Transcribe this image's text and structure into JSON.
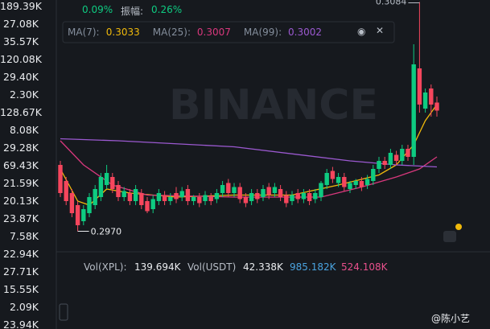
{
  "left_labels": [
    "189.39K",
    "27.08K",
    "35.57K",
    "120.08K",
    "29.40K",
    "2.30K",
    "128.67K",
    "8.08K",
    "29.28K",
    "69.43K",
    "21.59K",
    "20.13K",
    "23.87K",
    "7.58K",
    "22.94K",
    "27.71K",
    "15.55K",
    "2.09K",
    "23.94K"
  ],
  "header": {
    "change": "0.09%",
    "amplitude_label": "振幅:",
    "amplitude": "0.26%"
  },
  "ma_legend": [
    {
      "label": "MA(7):",
      "value": "0.3033",
      "color": "#f0b90b",
      "points": [
        [
          0,
          0.3001
        ],
        [
          3,
          0.2985
        ],
        [
          5,
          0.2983
        ],
        [
          8,
          0.2991
        ],
        [
          12,
          0.2989
        ],
        [
          20,
          0.2987
        ],
        [
          30,
          0.2988
        ],
        [
          40,
          0.2988
        ],
        [
          48,
          0.2993
        ],
        [
          55,
          0.2998
        ],
        [
          58,
          0.3003
        ],
        [
          61,
          0.3013
        ],
        [
          63,
          0.3025
        ],
        [
          65,
          0.3033
        ]
      ]
    },
    {
      "label": "MA(25):",
      "value": "0.3007",
      "color": "#d9387d",
      "points": [
        [
          0,
          0.3015
        ],
        [
          4,
          0.3003
        ],
        [
          9,
          0.2993
        ],
        [
          15,
          0.2988
        ],
        [
          30,
          0.2987
        ],
        [
          45,
          0.2987
        ],
        [
          52,
          0.2992
        ],
        [
          58,
          0.2997
        ],
        [
          62,
          0.3001
        ],
        [
          65,
          0.3007
        ]
      ]
    },
    {
      "label": "MA(99):",
      "value": "0.3002",
      "color": "#9b59d0",
      "points": [
        [
          0,
          0.3016
        ],
        [
          10,
          0.3015
        ],
        [
          30,
          0.3012
        ],
        [
          50,
          0.3005
        ],
        [
          58,
          0.3003
        ],
        [
          65,
          0.3002
        ]
      ]
    }
  ],
  "chart_data": {
    "type": "candlestick",
    "ylim": [
      0.2961,
      0.3085
    ],
    "up_color": "#0ecb81",
    "down_color": "#f6465d",
    "watermark": "BINANCE",
    "high_label": "0.3084",
    "low_label": "0.2970",
    "candles": [
      [
        0.3003,
        0.3005,
        0.2987,
        0.2989
      ],
      [
        0.2995,
        0.2997,
        0.2983,
        0.2985
      ],
      [
        0.2989,
        0.2991,
        0.2977,
        0.2979
      ],
      [
        0.2983,
        0.2985,
        0.297,
        0.2973
      ],
      [
        0.2975,
        0.2983,
        0.2973,
        0.2981
      ],
      [
        0.2979,
        0.2989,
        0.2977,
        0.2987
      ],
      [
        0.2983,
        0.2993,
        0.2981,
        0.2991
      ],
      [
        0.2987,
        0.2999,
        0.2985,
        0.2997
      ],
      [
        0.2993,
        0.3003,
        0.2991,
        0.2999
      ],
      [
        0.2997,
        0.2999,
        0.2989,
        0.2991
      ],
      [
        0.2993,
        0.2995,
        0.2985,
        0.2987
      ],
      [
        0.2987,
        0.2992,
        0.2985,
        0.299
      ],
      [
        0.2989,
        0.2991,
        0.2983,
        0.2985
      ],
      [
        0.2985,
        0.2993,
        0.2983,
        0.2991
      ],
      [
        0.2989,
        0.2991,
        0.2981,
        0.2983
      ],
      [
        0.2985,
        0.2987,
        0.2979,
        0.298
      ],
      [
        0.2981,
        0.2988,
        0.2979,
        0.2986
      ],
      [
        0.2985,
        0.2991,
        0.2983,
        0.2989
      ],
      [
        0.2988,
        0.299,
        0.2983,
        0.2985
      ],
      [
        0.2985,
        0.2989,
        0.2983,
        0.2987
      ],
      [
        0.2989,
        0.2992,
        0.2984,
        0.2986
      ],
      [
        0.2987,
        0.2992,
        0.2985,
        0.299
      ],
      [
        0.2991,
        0.2993,
        0.2983,
        0.2985
      ],
      [
        0.2985,
        0.2988,
        0.2983,
        0.2987
      ],
      [
        0.2987,
        0.2989,
        0.2982,
        0.2984
      ],
      [
        0.2985,
        0.299,
        0.2983,
        0.2988
      ],
      [
        0.2987,
        0.2989,
        0.2983,
        0.2985
      ],
      [
        0.2986,
        0.2991,
        0.2984,
        0.2989
      ],
      [
        0.2989,
        0.2995,
        0.2987,
        0.2993
      ],
      [
        0.2994,
        0.2996,
        0.2987,
        0.2989
      ],
      [
        0.2989,
        0.2994,
        0.2987,
        0.2992
      ],
      [
        0.2992,
        0.2994,
        0.2984,
        0.2986
      ],
      [
        0.2987,
        0.2989,
        0.2982,
        0.2984
      ],
      [
        0.2985,
        0.2991,
        0.2983,
        0.2989
      ],
      [
        0.2989,
        0.2991,
        0.2984,
        0.2986
      ],
      [
        0.2987,
        0.2993,
        0.2985,
        0.2991
      ],
      [
        0.2992,
        0.2994,
        0.2986,
        0.2988
      ],
      [
        0.2989,
        0.2994,
        0.2987,
        0.2992
      ],
      [
        0.2991,
        0.2993,
        0.2985,
        0.2987
      ],
      [
        0.2988,
        0.299,
        0.2982,
        0.2984
      ],
      [
        0.2985,
        0.299,
        0.2983,
        0.2988
      ],
      [
        0.2989,
        0.2991,
        0.2984,
        0.2986
      ],
      [
        0.2986,
        0.2991,
        0.2984,
        0.2989
      ],
      [
        0.2989,
        0.2991,
        0.2983,
        0.2985
      ],
      [
        0.2986,
        0.2991,
        0.2984,
        0.2989
      ],
      [
        0.2987,
        0.2995,
        0.2985,
        0.2994
      ],
      [
        0.2993,
        0.3001,
        0.2991,
        0.2999
      ],
      [
        0.3,
        0.3002,
        0.2994,
        0.2996
      ],
      [
        0.2994,
        0.2999,
        0.2992,
        0.2997
      ],
      [
        0.2997,
        0.2999,
        0.299,
        0.2992
      ],
      [
        0.2991,
        0.2995,
        0.2989,
        0.2994
      ],
      [
        0.2993,
        0.2996,
        0.2991,
        0.2995
      ],
      [
        0.2995,
        0.2997,
        0.299,
        0.2992
      ],
      [
        0.2993,
        0.2998,
        0.2991,
        0.2996
      ],
      [
        0.2995,
        0.3003,
        0.2993,
        0.3001
      ],
      [
        0.3001,
        0.3007,
        0.2999,
        0.3005
      ],
      [
        0.3005,
        0.3007,
        0.3001,
        0.3003
      ],
      [
        0.3003,
        0.3011,
        0.3001,
        0.3009
      ],
      [
        0.3008,
        0.301,
        0.3003,
        0.3005
      ],
      [
        0.3005,
        0.3013,
        0.3003,
        0.3011
      ],
      [
        0.3011,
        0.3013,
        0.3005,
        0.3007
      ],
      [
        0.3007,
        0.3063,
        0.3003,
        0.3053
      ],
      [
        0.3051,
        0.3084,
        0.3029,
        0.3033
      ],
      [
        0.3031,
        0.3041,
        0.3029,
        0.3039
      ],
      [
        0.3041,
        0.3043,
        0.3027,
        0.3033
      ],
      [
        0.3034,
        0.3037,
        0.3027,
        0.303
      ]
    ]
  },
  "volume_legend": {
    "label1": "Vol(XPL):",
    "value1": "139.694K",
    "label2": "Vol(USDT)",
    "value2": "42.338K",
    "value3": "985.182K",
    "value4": "524.108K"
  },
  "user": "@陈小艺"
}
